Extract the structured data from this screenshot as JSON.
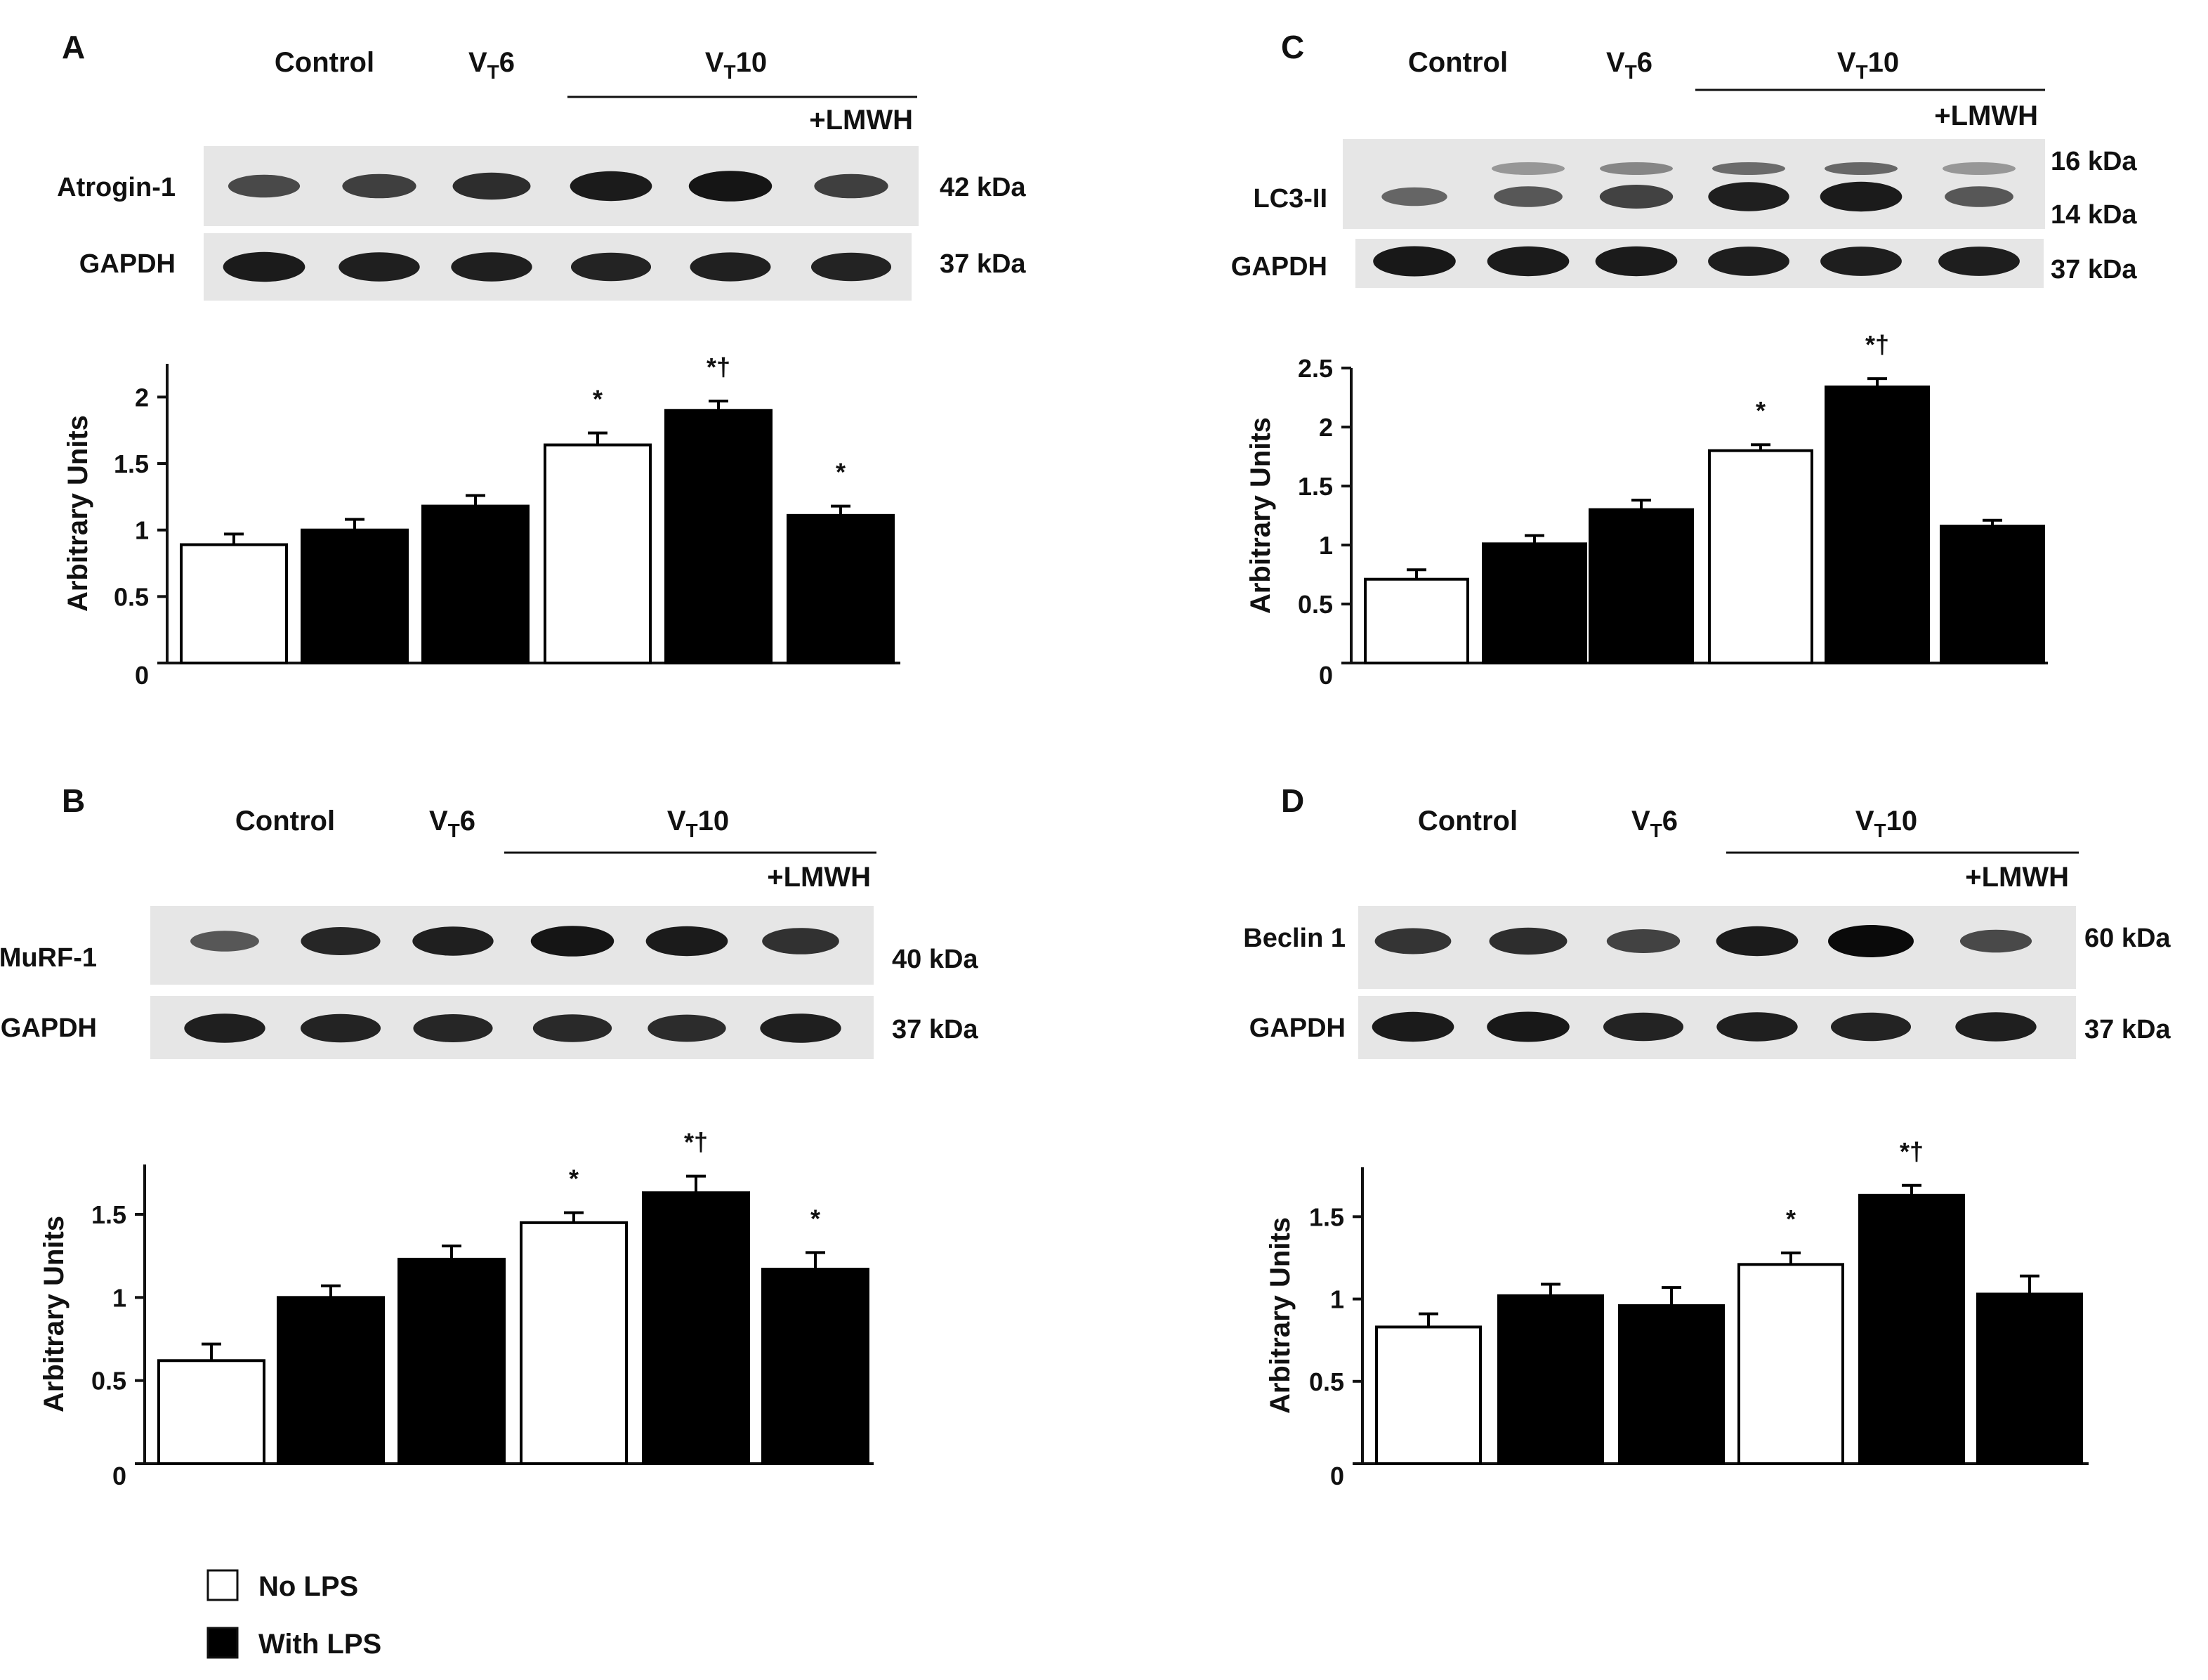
{
  "legend": [
    {
      "label": "No LPS",
      "fill": "#ffffff"
    },
    {
      "label": "With LPS",
      "fill": "#000000"
    }
  ],
  "lane_headers": {
    "control": "Control",
    "vt6_main": "V",
    "vt6_sub": "T",
    "vt6_num": "6",
    "vt10_main": "V",
    "vt10_sub": "T",
    "vt10_num": "10",
    "lmwh": "+LMWH"
  },
  "chart_data": [
    {
      "panel": "A",
      "type": "bar",
      "blots": [
        {
          "label": "Atrogin-1",
          "kda": [
            "42 kDa"
          ],
          "intensities": [
            0.55,
            0.62,
            0.75,
            0.88,
            0.92,
            0.62
          ]
        },
        {
          "label": "GAPDH",
          "kda": [
            "37 kDa"
          ],
          "intensities": [
            0.88,
            0.85,
            0.85,
            0.82,
            0.84,
            0.82
          ]
        }
      ],
      "ylabel": "Arbitrary Units",
      "yticks": [
        0,
        0.5,
        1,
        1.5,
        2
      ],
      "ylim": [
        0,
        2.25
      ],
      "values": [
        0.89,
        1.0,
        1.18,
        1.64,
        1.9,
        1.11
      ],
      "errors": [
        0.08,
        0.08,
        0.08,
        0.09,
        0.07,
        0.07
      ],
      "lps": [
        false,
        true,
        true,
        false,
        true,
        true
      ],
      "annotations": [
        "",
        "",
        "",
        "*",
        "*†",
        "*"
      ]
    },
    {
      "panel": "B",
      "type": "bar",
      "blots": [
        {
          "label": "MuRF-1",
          "kda": [
            "40 kDa"
          ],
          "intensities": [
            0.45,
            0.8,
            0.85,
            0.92,
            0.88,
            0.72
          ]
        },
        {
          "label": "GAPDH",
          "kda": [
            "37 kDa"
          ],
          "intensities": [
            0.85,
            0.82,
            0.8,
            0.78,
            0.76,
            0.85
          ]
        }
      ],
      "ylabel": "Arbitrary Units",
      "yticks": [
        0,
        0.5,
        1,
        1.5
      ],
      "ylim": [
        0,
        1.8
      ],
      "values": [
        0.62,
        1.0,
        1.23,
        1.45,
        1.63,
        1.17
      ],
      "errors": [
        0.1,
        0.07,
        0.08,
        0.06,
        0.1,
        0.1
      ],
      "lps": [
        false,
        true,
        true,
        false,
        true,
        true
      ],
      "annotations": [
        "",
        "",
        "",
        "*",
        "*†",
        "*"
      ]
    },
    {
      "panel": "C",
      "type": "bar",
      "blots": [
        {
          "label": "LC3-II",
          "kda": [
            "16 kDa",
            "14 kDa"
          ],
          "intensities": [
            0.35,
            0.45,
            0.6,
            0.85,
            0.88,
            0.45
          ]
        },
        {
          "label": "GAPDH",
          "kda": [
            "37 kDa"
          ],
          "intensities": [
            0.9,
            0.88,
            0.88,
            0.86,
            0.86,
            0.86
          ]
        }
      ],
      "ylabel": "Arbitrary Units",
      "yticks": [
        0,
        0.5,
        1,
        1.5,
        2,
        2.5
      ],
      "ylim": [
        0,
        2.5
      ],
      "values": [
        0.71,
        1.01,
        1.3,
        1.8,
        2.34,
        1.16
      ],
      "errors": [
        0.08,
        0.07,
        0.08,
        0.05,
        0.07,
        0.05
      ],
      "lps": [
        false,
        true,
        true,
        false,
        true,
        true
      ],
      "annotations": [
        "",
        "",
        "",
        "*",
        "*†",
        ""
      ]
    },
    {
      "panel": "D",
      "type": "bar",
      "blots": [
        {
          "label": "Beclin 1",
          "kda": [
            "60 kDa"
          ],
          "intensities": [
            0.7,
            0.75,
            0.6,
            0.88,
            1.0,
            0.55
          ]
        },
        {
          "label": "GAPDH",
          "kda": [
            "37 kDa"
          ],
          "intensities": [
            0.88,
            0.9,
            0.82,
            0.85,
            0.82,
            0.85
          ]
        }
      ],
      "ylabel": "Arbitrary Units",
      "yticks": [
        0,
        0.5,
        1,
        1.5
      ],
      "ylim": [
        0,
        1.8
      ],
      "values": [
        0.83,
        1.02,
        0.96,
        1.21,
        1.63,
        1.03
      ],
      "errors": [
        0.08,
        0.07,
        0.11,
        0.07,
        0.06,
        0.11
      ],
      "lps": [
        false,
        true,
        true,
        false,
        true,
        true
      ],
      "annotations": [
        "",
        "",
        "",
        "*",
        "*†",
        ""
      ]
    }
  ]
}
